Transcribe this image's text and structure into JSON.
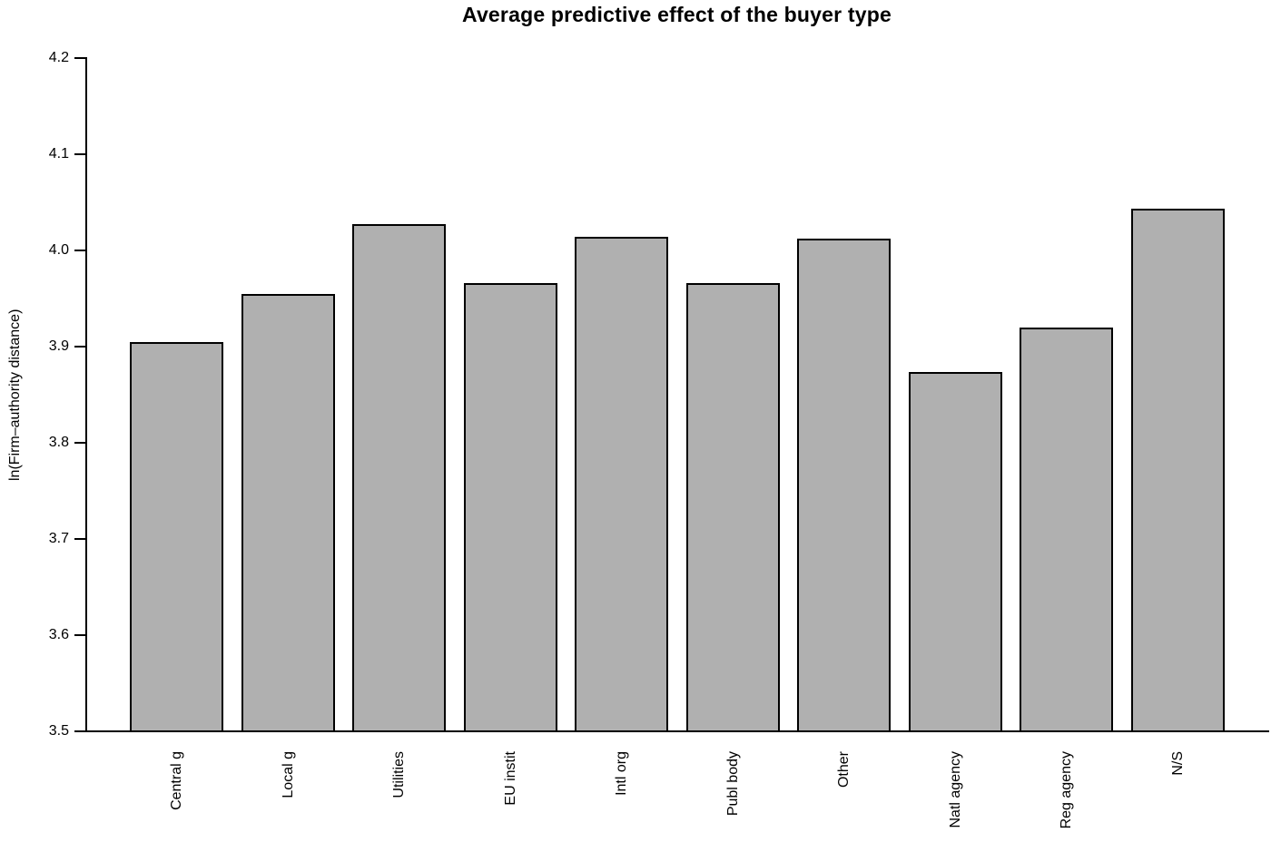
{
  "chart_data": {
    "type": "bar",
    "title": "Average predictive effect of the buyer type",
    "xlabel": "",
    "ylabel": "ln(Firm–authority distance)",
    "categories": [
      "Central g",
      "Local g",
      "Utilities",
      "EU instit",
      "Intl org",
      "Publ body",
      "Other",
      "Natl agency",
      "Reg agency",
      "N/S"
    ],
    "values": [
      3.905,
      3.955,
      4.027,
      3.966,
      4.014,
      3.966,
      4.012,
      3.874,
      3.92,
      4.043
    ],
    "ylim": [
      3.5,
      4.2
    ],
    "ytick_labels": [
      "3.5",
      "3.6",
      "3.7",
      "3.8",
      "3.9",
      "4.0",
      "4.1",
      "4.2"
    ],
    "grid": false,
    "legend": false,
    "bar_fill_color": "#b0b0b0",
    "bar_border_color": "#000000",
    "axis_color": "#000000",
    "text_color": "#000000",
    "background_color": "#ffffff"
  }
}
